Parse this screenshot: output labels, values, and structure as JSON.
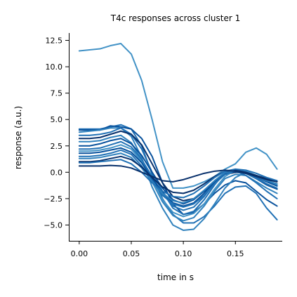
{
  "chart_data": {
    "type": "line",
    "title": "T4c responses across cluster 1",
    "xlabel": "time in s",
    "ylabel": "response (a.u.)",
    "xlim": [
      -0.01,
      0.195
    ],
    "ylim": [
      -6.5,
      13.2
    ],
    "xticks": [
      0.0,
      0.05,
      0.1,
      0.15
    ],
    "xtick_labels": [
      "0.00",
      "0.05",
      "0.10",
      "0.15"
    ],
    "yticks": [
      -5.0,
      -2.5,
      0.0,
      2.5,
      5.0,
      7.5,
      10.0,
      12.5
    ],
    "ytick_labels": [
      "−5.0",
      "−2.5",
      "0.0",
      "2.5",
      "5.0",
      "7.5",
      "10.0",
      "12.5"
    ],
    "grid": false,
    "legend": "none",
    "x": [
      0.0,
      0.01,
      0.02,
      0.03,
      0.04,
      0.05,
      0.06,
      0.07,
      0.08,
      0.09,
      0.1,
      0.11,
      0.12,
      0.13,
      0.14,
      0.15,
      0.16,
      0.17,
      0.18,
      0.19
    ],
    "series": [
      {
        "color": "#4292c6",
        "values": [
          11.5,
          11.6,
          11.7,
          12.0,
          12.2,
          11.2,
          8.7,
          5.0,
          1.0,
          -1.5,
          -1.5,
          -1.3,
          -0.9,
          -0.4,
          0.3,
          0.8,
          1.9,
          2.3,
          1.7,
          0.3
        ]
      },
      {
        "color": "#2171b5",
        "values": [
          4.1,
          4.1,
          4.1,
          4.3,
          4.5,
          4.1,
          2.5,
          -0.2,
          -2.5,
          -4.0,
          -4.8,
          -4.8,
          -4.2,
          -3.2,
          -2.0,
          -1.4,
          -1.3,
          -2.0,
          -3.4,
          -4.5
        ]
      },
      {
        "color": "#08519c",
        "values": [
          4.0,
          4.0,
          4.0,
          4.4,
          4.3,
          4.1,
          3.2,
          1.5,
          -1.0,
          -3.0,
          -4.0,
          -3.8,
          -3.0,
          -2.0,
          -1.2,
          -0.8,
          -1.0,
          -1.8,
          -2.6,
          -3.2
        ]
      },
      {
        "color": "#3182bd",
        "values": [
          3.8,
          3.9,
          4.0,
          4.2,
          4.2,
          3.4,
          1.4,
          -1.4,
          -3.4,
          -5.0,
          -5.5,
          -5.4,
          -4.4,
          -3.0,
          -1.5,
          -0.5,
          0.0,
          -0.3,
          -0.8,
          -1.3
        ]
      },
      {
        "color": "#2171b5",
        "values": [
          3.5,
          3.5,
          3.6,
          3.8,
          4.2,
          3.6,
          2.2,
          0.0,
          -1.8,
          -3.4,
          -4.0,
          -3.7,
          -2.6,
          -1.2,
          0.0,
          0.2,
          0.0,
          -0.5,
          -1.1,
          -1.6
        ]
      },
      {
        "color": "#08306b",
        "values": [
          3.2,
          3.2,
          3.3,
          3.6,
          3.9,
          3.6,
          2.6,
          0.8,
          -1.0,
          -2.3,
          -2.7,
          -2.5,
          -1.8,
          -0.9,
          -0.2,
          0.0,
          -0.1,
          -0.4,
          -0.8,
          -1.1
        ]
      },
      {
        "color": "#3182bd",
        "values": [
          2.9,
          2.9,
          3.0,
          3.3,
          3.5,
          2.8,
          1.2,
          -0.9,
          -2.8,
          -4.1,
          -4.6,
          -4.3,
          -3.2,
          -1.8,
          -0.6,
          -0.2,
          -0.3,
          -0.9,
          -1.5,
          -2.0
        ]
      },
      {
        "color": "#08519c",
        "values": [
          2.5,
          2.5,
          2.7,
          3.0,
          3.2,
          2.7,
          1.6,
          0.0,
          -1.5,
          -2.6,
          -3.0,
          -2.6,
          -1.8,
          -0.8,
          -0.1,
          0.1,
          -0.1,
          -0.6,
          -1.2,
          -1.6
        ]
      },
      {
        "color": "#2171b5",
        "values": [
          2.2,
          2.2,
          2.3,
          2.6,
          2.9,
          2.4,
          1.2,
          -0.4,
          -2.0,
          -3.2,
          -3.6,
          -3.3,
          -2.3,
          -1.0,
          0.0,
          0.1,
          -0.3,
          -1.0,
          -1.8,
          -2.5
        ]
      },
      {
        "color": "#4292c6",
        "values": [
          2.0,
          2.0,
          2.1,
          2.3,
          2.6,
          2.2,
          1.0,
          -0.9,
          -2.6,
          -3.8,
          -4.2,
          -3.9,
          -3.0,
          -1.6,
          -0.4,
          0.2,
          0.1,
          -0.3,
          -0.8,
          -1.2
        ]
      },
      {
        "color": "#08519c",
        "values": [
          1.8,
          1.8,
          1.9,
          2.1,
          2.3,
          1.9,
          0.9,
          -0.6,
          -1.9,
          -2.9,
          -3.2,
          -2.9,
          -2.0,
          -0.9,
          0.0,
          0.2,
          0.0,
          -0.4,
          -0.9,
          -1.3
        ]
      },
      {
        "color": "#2171b5",
        "values": [
          1.5,
          1.5,
          1.6,
          1.8,
          2.1,
          1.7,
          0.6,
          -0.8,
          -2.2,
          -3.0,
          -3.3,
          -3.0,
          -2.2,
          -1.1,
          -0.2,
          0.1,
          -0.1,
          -0.6,
          -1.1,
          -1.5
        ]
      },
      {
        "color": "#3182bd",
        "values": [
          1.3,
          1.3,
          1.4,
          1.6,
          1.8,
          1.4,
          0.4,
          -0.9,
          -2.0,
          -2.7,
          -2.9,
          -2.5,
          -1.7,
          -0.8,
          0.0,
          0.2,
          0.0,
          -0.4,
          -0.8,
          -1.1
        ]
      },
      {
        "color": "#08306b",
        "values": [
          1.0,
          1.0,
          1.1,
          1.3,
          1.5,
          1.2,
          0.5,
          -0.5,
          -1.4,
          -1.9,
          -2.0,
          -1.7,
          -1.1,
          -0.4,
          0.1,
          0.2,
          0.0,
          -0.3,
          -0.6,
          -0.9
        ]
      },
      {
        "color": "#2171b5",
        "values": [
          0.9,
          0.9,
          1.0,
          1.1,
          1.2,
          0.8,
          0.0,
          -1.0,
          -1.8,
          -2.3,
          -2.4,
          -2.0,
          -1.3,
          -0.5,
          0.1,
          0.3,
          0.2,
          -0.1,
          -0.5,
          -0.8
        ]
      },
      {
        "color": "#08306b",
        "values": [
          0.6,
          0.6,
          0.6,
          0.65,
          0.6,
          0.4,
          0.0,
          -0.4,
          -0.8,
          -0.9,
          -0.7,
          -0.4,
          -0.1,
          0.1,
          0.2,
          0.1,
          -0.1,
          -0.4,
          -0.7,
          -0.9
        ]
      }
    ]
  }
}
